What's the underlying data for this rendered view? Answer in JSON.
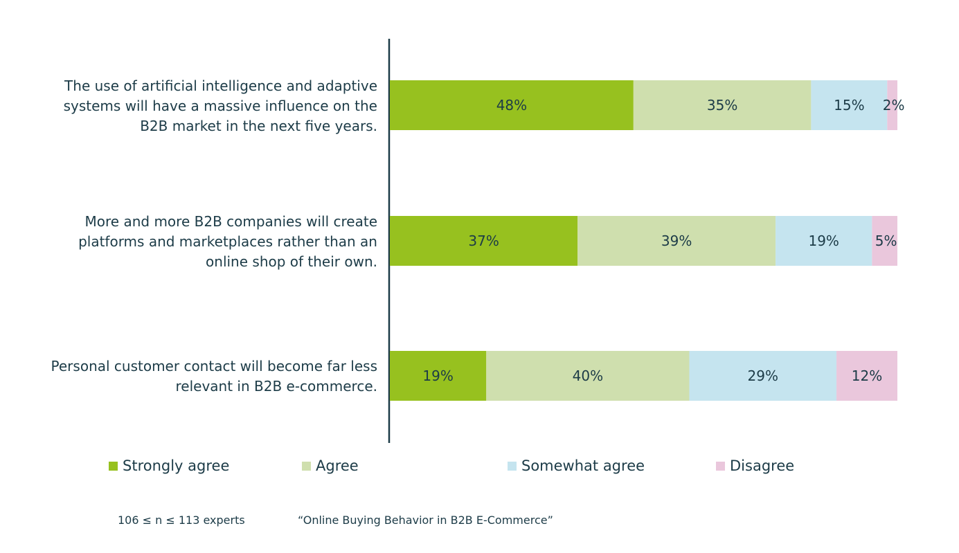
{
  "chart_data": {
    "type": "bar",
    "orientation": "horizontal",
    "stacked": true,
    "categories": [
      [
        "The use of artificial intelligence and adaptive",
        "systems will have a massive influence on the",
        "B2B market in the next five years."
      ],
      [
        "More and more B2B companies will create",
        "platforms and marketplaces rather than an",
        "online shop of their own."
      ],
      [
        "Personal customer contact will become far less",
        "relevant in B2B e-commerce."
      ]
    ],
    "series": [
      {
        "name": "Strongly agree",
        "color": "#97c11f",
        "values": [
          48,
          37,
          19
        ]
      },
      {
        "name": "Agree",
        "color": "#cfdfae",
        "values": [
          35,
          39,
          40
        ]
      },
      {
        "name": "Somewhat agree",
        "color": "#c5e4ef",
        "values": [
          15,
          19,
          29
        ]
      },
      {
        "name": "Disagree",
        "color": "#eac7dc",
        "values": [
          2,
          5,
          12
        ]
      }
    ],
    "data_labels": [
      [
        "48%",
        "35%",
        "15%",
        "2%"
      ],
      [
        "37%",
        "39%",
        "19%",
        "5%"
      ],
      [
        "19%",
        "40%",
        "29%",
        "12%"
      ]
    ],
    "xlim": [
      0,
      100
    ],
    "legend_position": "bottom",
    "grid": false
  },
  "footer": {
    "sample": "106 ≤ n ≤ 113  experts",
    "source": "“Online Buying Behavior in B2B E-Commerce”"
  },
  "colors": {
    "axis": "#1c3b47",
    "text": "#1c3b47"
  }
}
